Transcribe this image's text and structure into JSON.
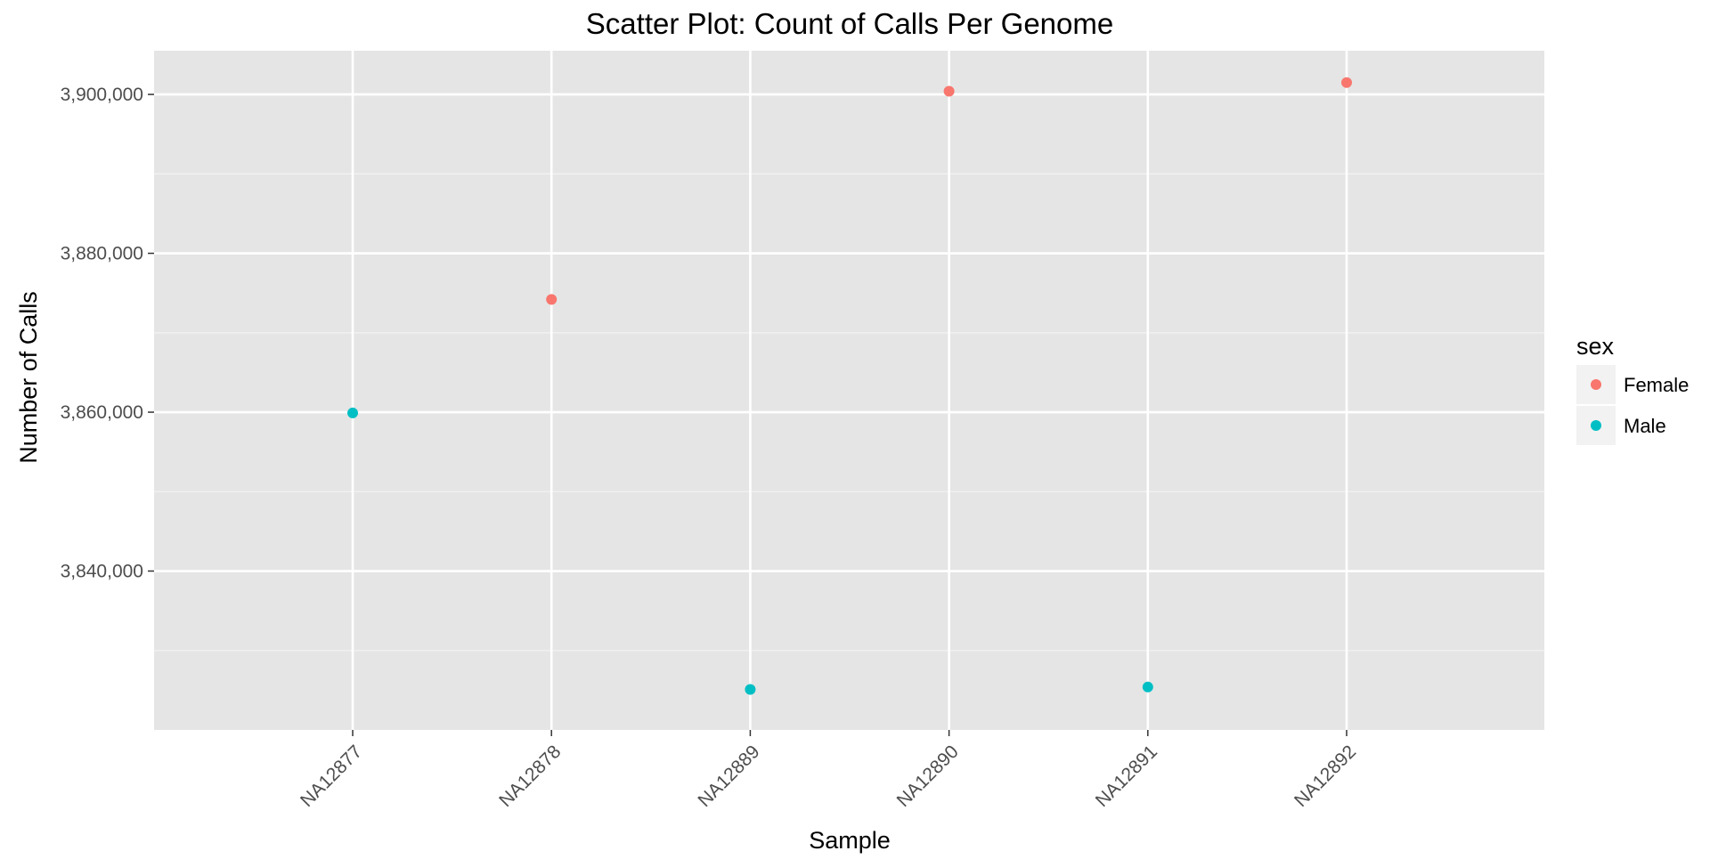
{
  "chart_data": {
    "type": "scatter",
    "title": "Scatter Plot: Count of Calls Per Genome",
    "xlabel": "Sample",
    "ylabel": "Number of Calls",
    "categories": [
      "NA12877",
      "NA12878",
      "NA12889",
      "NA12890",
      "NA12891",
      "NA12892"
    ],
    "y_ticks": [
      3840000,
      3860000,
      3880000,
      3900000
    ],
    "y_tick_labels": [
      "3,840,000",
      "3,860,000",
      "3,880,000",
      "3,900,000"
    ],
    "ylim": [
      3820000,
      3905500
    ],
    "grid": true,
    "legend": {
      "title": "sex",
      "position": "right",
      "entries": [
        {
          "name": "Female",
          "color": "#F8766D"
        },
        {
          "name": "Male",
          "color": "#00BFC4"
        }
      ]
    },
    "points": [
      {
        "category": "NA12877",
        "y": 3859900,
        "sex": "Male"
      },
      {
        "category": "NA12878",
        "y": 3874200,
        "sex": "Female"
      },
      {
        "category": "NA12889",
        "y": 3825100,
        "sex": "Male"
      },
      {
        "category": "NA12890",
        "y": 3900400,
        "sex": "Female"
      },
      {
        "category": "NA12891",
        "y": 3825400,
        "sex": "Male"
      },
      {
        "category": "NA12892",
        "y": 3901500,
        "sex": "Female"
      }
    ],
    "colors": {
      "panel_background": "#E5E5E5",
      "grid_major": "#FFFFFF",
      "grid_minor": "#F2F2F2",
      "tick_text": "#4D4D4D",
      "legend_key_background": "#F2F2F2"
    }
  }
}
